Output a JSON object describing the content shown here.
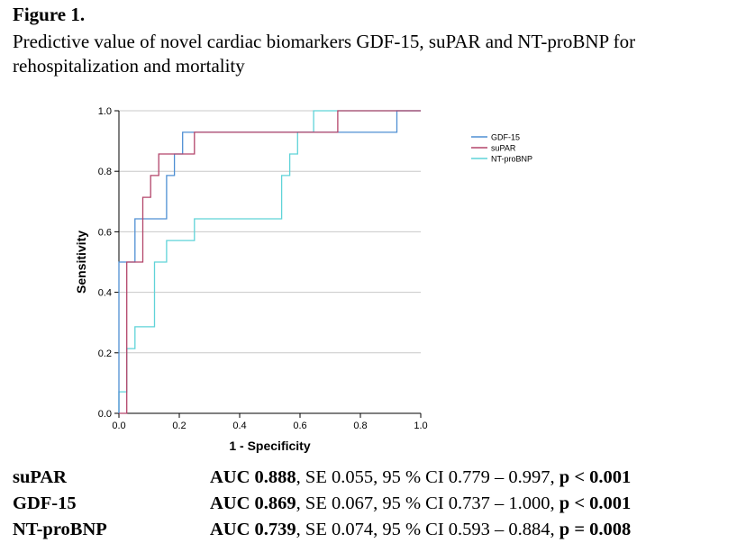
{
  "figure": {
    "label": "Figure 1.",
    "caption": "Predictive value of novel cardiac biomarkers GDF-15, suPAR and NT-proBNP for rehospitalization and mortality"
  },
  "chart_data": {
    "type": "line",
    "xlabel": "1 - Specificity",
    "ylabel": "Sensitivity",
    "xlim": [
      0,
      1
    ],
    "ylim": [
      0,
      1
    ],
    "xticks": [
      "0.0",
      "0.2",
      "0.4",
      "0.6",
      "0.8",
      "1.0"
    ],
    "yticks": [
      "0.0",
      "0.2",
      "0.4",
      "0.6",
      "0.8",
      "1.0"
    ],
    "grid": "horizontal",
    "legend_position": "right",
    "series": [
      {
        "name": "GDF-15",
        "color": "#4f8fd3",
        "x": [
          0,
          0,
          0.026,
          0.026,
          0.053,
          0.053,
          0.158,
          0.158,
          0.184,
          0.184,
          0.211,
          0.211,
          0.921,
          0.921,
          1.0
        ],
        "y": [
          0,
          0.5,
          0.5,
          0.5,
          0.5,
          0.643,
          0.643,
          0.786,
          0.786,
          0.857,
          0.857,
          0.929,
          0.929,
          1.0,
          1.0
        ]
      },
      {
        "name": "suPAR",
        "color": "#b3456a",
        "x": [
          0,
          0.026,
          0.026,
          0.053,
          0.053,
          0.079,
          0.079,
          0.105,
          0.105,
          0.132,
          0.132,
          0.25,
          0.25,
          0.725,
          0.725,
          1.0
        ],
        "y": [
          0,
          0,
          0.5,
          0.5,
          0.5,
          0.5,
          0.714,
          0.714,
          0.786,
          0.786,
          0.857,
          0.857,
          0.929,
          0.929,
          1.0,
          1.0
        ]
      },
      {
        "name": "NT-proBNP",
        "color": "#5fd3d8",
        "x": [
          0,
          0,
          0.026,
          0.026,
          0.053,
          0.053,
          0.118,
          0.118,
          0.158,
          0.158,
          0.25,
          0.25,
          0.539,
          0.539,
          0.566,
          0.566,
          0.592,
          0.592,
          0.645,
          0.645,
          0.934,
          0.934,
          1.0
        ],
        "y": [
          0,
          0.071,
          0.071,
          0.214,
          0.214,
          0.286,
          0.286,
          0.5,
          0.5,
          0.571,
          0.571,
          0.643,
          0.643,
          0.786,
          0.786,
          0.857,
          0.857,
          0.929,
          0.929,
          1.0,
          1.0,
          1.0,
          1.0
        ]
      }
    ]
  },
  "stats": [
    {
      "name": "suPAR",
      "auc": "AUC 0.888",
      "mid": ", SE 0.055, 95 % CI 0.779 – 0.997, ",
      "p": "p < 0.001"
    },
    {
      "name": "GDF-15",
      "auc": "AUC 0.869",
      "mid": ", SE 0.067, 95 % CI 0.737 – 1.000, ",
      "p": "p < 0.001"
    },
    {
      "name": "NT-proBNP",
      "auc": "AUC 0.739",
      "mid": ", SE 0.074, 95 % CI 0.593 – 0.884, ",
      "p": "p = 0.008"
    }
  ]
}
